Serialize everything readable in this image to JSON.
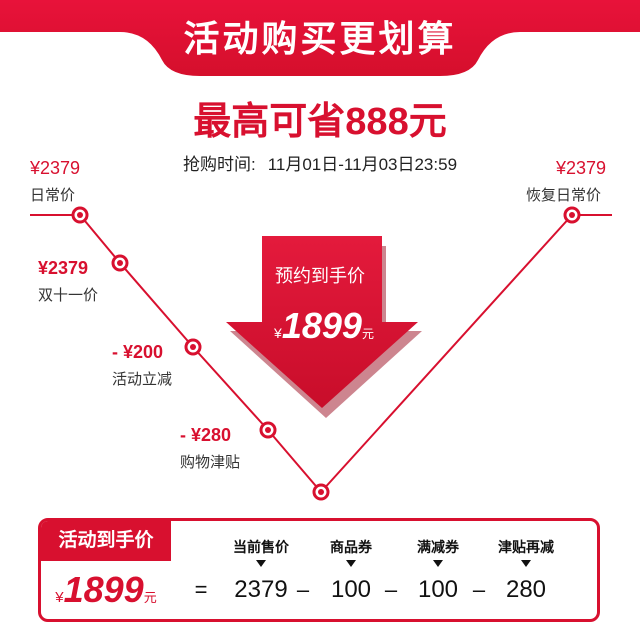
{
  "header": {
    "title": "活动购买更划算"
  },
  "headline": "最高可省888元",
  "period": {
    "label": "抢购时间:",
    "range": "11月01日-11月03日23:59"
  },
  "start": {
    "price": "¥2379",
    "label": "日常价"
  },
  "end": {
    "price": "¥2379",
    "label": "恢复日常价"
  },
  "steps": [
    {
      "value": "¥2379",
      "label": "双十一价"
    },
    {
      "value": "- ¥200",
      "label": "活动立减"
    },
    {
      "value": "- ¥280",
      "label": "购物津贴"
    }
  ],
  "badge": {
    "title": "预约到手价",
    "currency": "¥",
    "price": "1899",
    "unit": "元"
  },
  "table": {
    "head": "活动到手价",
    "currency": "¥",
    "price": "1899",
    "unit": "元",
    "columns": [
      {
        "header": "当前售价",
        "value": "2379"
      },
      {
        "header": "商品券",
        "value": "100"
      },
      {
        "header": "满减券",
        "value": "100"
      },
      {
        "header": "津贴再减",
        "value": "280"
      }
    ],
    "operators": [
      "=",
      "–",
      "–",
      "–"
    ]
  },
  "colors": {
    "accent": "#d8102f",
    "dark_red": "#b00d25"
  }
}
